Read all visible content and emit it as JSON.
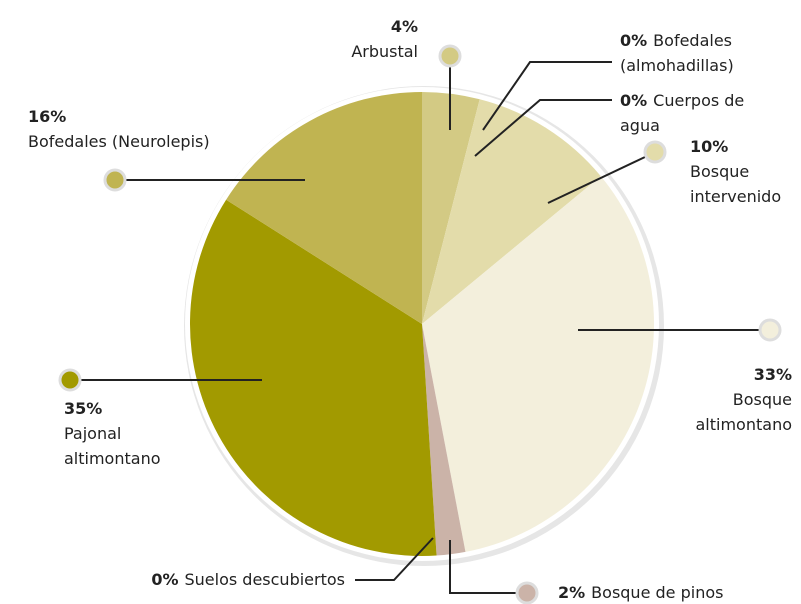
{
  "chart_data": {
    "type": "pie",
    "categories": [
      "Arbustal",
      "Bofedales (almohadillas)",
      "Cuerpos de agua",
      "Bosque intervenido",
      "Bosque altimontano",
      "Bosque de pinos",
      "Suelos descubiertos",
      "Pajonal altimontano",
      "Bofedales (Neurolepis)"
    ],
    "values": [
      4,
      0,
      0,
      10,
      33,
      2,
      0,
      35,
      16
    ],
    "value_labels": [
      "4%",
      "0%",
      "0%",
      "10%",
      "33%",
      "2%",
      "0%",
      "35%",
      "16%"
    ],
    "colors": [
      "#d3ca84",
      "#ddd6a0",
      "#ddd6a0",
      "#e3dcaa",
      "#f3efdc",
      "#cbb3a8",
      "#cbb3a8",
      "#a29a00",
      "#c0b451"
    ]
  }
}
